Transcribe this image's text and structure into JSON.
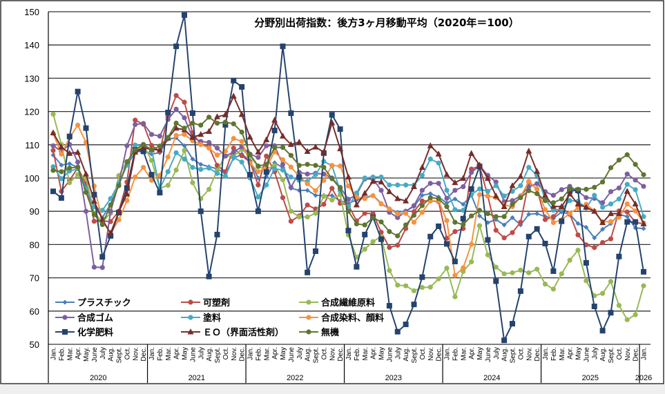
{
  "chart_data": {
    "type": "line",
    "title": "分野別出荷指数：後方3ヶ月移動平均（2020年＝100）",
    "xlabel": "",
    "ylabel": "",
    "ylim": [
      50,
      150
    ],
    "yticks": [
      150,
      140,
      130,
      120,
      110,
      100,
      90,
      80,
      70,
      60,
      50
    ],
    "grid": true,
    "legend_position": "bottom-left",
    "years": [
      "2020",
      "2021",
      "2022",
      "2023",
      "2024",
      "2025",
      "2026"
    ],
    "months": [
      "Jan.",
      "Feb.",
      "Mar.",
      "Apr.",
      "May.",
      "June",
      "July",
      "Aug.",
      "Sept.",
      "Oct.",
      "Nov.",
      "Dec.",
      "Jan.",
      "Feb.",
      "Mar.",
      "Apr.",
      "May",
      "June",
      "July",
      "Aug.",
      "Sept.",
      "Oct.",
      "Nov.",
      "Dec.",
      "Jan.",
      "Feb.",
      "Mar.",
      "Apr.",
      "May",
      "June",
      "July",
      "Aug.",
      "Sept.",
      "Oct.",
      "Nov.",
      "Dec.",
      "Jan.",
      "Feb.",
      "Mar.",
      "Apr.",
      "May",
      "June",
      "July",
      "Aug.",
      "Sept.",
      "Oct.",
      "Nov.",
      "Dec.",
      "Jan.",
      "Feb.",
      "Mar.",
      "Apr.",
      "May",
      "June",
      "July",
      "Aug.",
      "Sept.",
      "Oct.",
      "Nov.",
      "Dec.",
      "Jan.",
      "Feb.",
      "Mar.",
      "Apr.",
      "May",
      "June",
      "July",
      "Aug.",
      "Sept.",
      "Oct.",
      "Nov.",
      "Dec.",
      "Jan."
    ],
    "series": [
      {
        "name": "プラスチック",
        "color": "#4a7ebb",
        "marker": "diamond",
        "values": [
          106.9,
          103.9,
          104.3,
          103.2,
          96.9,
          91.4,
          88.1,
          92.1,
          98.3,
          103.8,
          107.8,
          108.1,
          107.2,
          107.6,
          111.7,
          112.1,
          109.7,
          105.7,
          104.1,
          103.4,
          102.8,
          101.4,
          105.9,
          107.2,
          105.2,
          100,
          100.3,
          104.6,
          103.1,
          96.9,
          96.3,
          96.3,
          94.8,
          94.8,
          94.7,
          93.1,
          92.4,
          93.4,
          94.1,
          94.8,
          92.4,
          90.7,
          89.7,
          90.1,
          91.4,
          94.8,
          95.3,
          94.3,
          92.5,
          93.7,
          92.1,
          94.8,
          88.6,
          86.6,
          87.5,
          85.9,
          88.1,
          85.9,
          89.1,
          89.3,
          88.4,
          87.9,
          89.8,
          89.1,
          86.3,
          85.2,
          82,
          84.6,
          86.3,
          89.1,
          88.4,
          85,
          84.8
        ]
      },
      {
        "name": "可塑剤",
        "color": "#be4b48",
        "marker": "circle",
        "values": [
          108.3,
          96,
          99.3,
          103.1,
          98.3,
          87,
          87.1,
          86.9,
          90,
          98.8,
          117.4,
          116.2,
          109.8,
          108.1,
          118.4,
          124.8,
          122.8,
          113.6,
          110.1,
          109.3,
          103.8,
          101.9,
          109,
          106.7,
          104.8,
          97.9,
          106.6,
          101.9,
          94.1,
          87,
          88.6,
          91.9,
          90.7,
          92.1,
          96.9,
          92.4,
          91.9,
          87.1,
          89.4,
          89.3,
          83.7,
          79.1,
          79.8,
          84.8,
          89.9,
          93.1,
          93.1,
          92.9,
          81.9,
          83.9,
          84.8,
          102.7,
          103.6,
          94.6,
          84.3,
          82,
          83.6,
          86.7,
          98.8,
          96.7,
          87.5,
          88.4,
          91.2,
          89.1,
          82.9,
          79.9,
          79.1,
          80.6,
          81.7,
          90.1,
          89.8,
          86.7,
          86.2
        ]
      },
      {
        "name": "合成繊維原料",
        "color": "#98b954",
        "marker": "circle",
        "values": [
          119.2,
          110.1,
          98.6,
          101,
          100,
          89.4,
          86.9,
          89.4,
          100.7,
          105,
          107.8,
          110,
          105.3,
          96.9,
          97.8,
          102.4,
          108.3,
          98.6,
          93.8,
          96.6,
          102.3,
          106.6,
          106.6,
          108.6,
          106.6,
          103.4,
          102.6,
          103.8,
          99.5,
          90,
          88.3,
          88.3,
          89.4,
          94.5,
          93.4,
          95,
          82.9,
          76.2,
          78.6,
          80.9,
          82.4,
          72.2,
          67.8,
          67.6,
          66.1,
          67.1,
          67.2,
          69.7,
          72.9,
          64.3,
          71.9,
          74.8,
          85.7,
          76.9,
          73.2,
          71.2,
          71.5,
          72.3,
          71.5,
          72.6,
          68.1,
          66.6,
          71.2,
          75.3,
          78.3,
          69.1,
          64.6,
          65.3,
          68.9,
          61.7,
          57.4,
          58.9,
          67.6
        ]
      },
      {
        "name": "合成ゴム",
        "color": "#7d5fa0",
        "marker": "circle",
        "values": [
          109.7,
          108.1,
          110.1,
          104.8,
          90,
          73.2,
          73.1,
          90,
          98.3,
          109.7,
          116.1,
          116.4,
          113.1,
          112.6,
          117.6,
          120.7,
          118.1,
          112.2,
          111,
          110.7,
          109,
          106.6,
          107.8,
          109.4,
          107.2,
          106.2,
          109.7,
          109.7,
          104.1,
          97.2,
          101.7,
          101.2,
          101.4,
          101.2,
          100,
          97.2,
          93.6,
          95,
          99.7,
          99.7,
          96.3,
          89.7,
          88.1,
          90,
          91.7,
          96.3,
          98.4,
          98.4,
          93.9,
          96.3,
          97.4,
          101.7,
          103.7,
          100.8,
          98.8,
          92.9,
          93.2,
          94.6,
          97.4,
          98.3,
          95.9,
          94.8,
          96.5,
          97.5,
          96,
          94.1,
          93.9,
          92.6,
          95.9,
          97,
          101.2,
          99.4,
          97.5
        ]
      },
      {
        "name": "塗料",
        "color": "#46aac5",
        "marker": "circle",
        "values": [
          103.4,
          99.8,
          102.1,
          102.8,
          96.9,
          91.4,
          90.3,
          93.8,
          98.3,
          103.9,
          109.9,
          109.7,
          108.6,
          96.9,
          101.9,
          107.6,
          105.7,
          103.2,
          102.6,
          103,
          101.4,
          100.5,
          106.2,
          104.8,
          100,
          94.3,
          97.9,
          102.8,
          102.4,
          100.3,
          99.3,
          99,
          101,
          105,
          103.7,
          96.2,
          91.4,
          95.5,
          100,
          100.3,
          100.3,
          97.9,
          97.9,
          97.9,
          97.9,
          100.8,
          105.7,
          104.5,
          96.3,
          90.5,
          90.3,
          95.1,
          96.7,
          96,
          97.7,
          94.6,
          96,
          97.7,
          103.2,
          100.8,
          93.6,
          90.3,
          90.7,
          93.2,
          93,
          91,
          94.8,
          91.2,
          92.2,
          93.7,
          98.1,
          96.5,
          88.4
        ]
      },
      {
        "name": "合成染料、顔料",
        "color": "#f69240",
        "marker": "circle",
        "values": [
          113.4,
          107.2,
          112.1,
          115.9,
          110.7,
          97.6,
          87.1,
          83.4,
          87.4,
          93.2,
          100.3,
          103.2,
          99.3,
          100.8,
          106.3,
          112.8,
          113.1,
          111.2,
          110.1,
          109,
          106.9,
          108.1,
          111.9,
          111,
          104.5,
          101.9,
          103.1,
          107.9,
          105.5,
          103.3,
          100.5,
          98.3,
          96.2,
          99.3,
          103.8,
          103.6,
          97.6,
          94.3,
          93.8,
          94.7,
          92.2,
          90.7,
          89.2,
          89.4,
          86.7,
          89.7,
          93.1,
          93.1,
          87.2,
          70.7,
          73,
          80.1,
          95,
          94.6,
          94.1,
          91.9,
          91.4,
          94.4,
          99,
          96.7,
          90.5,
          86.6,
          87.4,
          89.4,
          91,
          92.1,
          90.1,
          86.8,
          86.9,
          88.2,
          92.2,
          90.1,
          86.5
        ]
      },
      {
        "name": "化学肥料",
        "color": "#24436e",
        "marker": "square",
        "values": [
          96,
          94,
          112.5,
          126,
          115,
          95,
          76.3,
          82.6,
          89.6,
          97,
          108.5,
          108,
          101,
          95.6,
          119.7,
          139.6,
          149,
          119.5,
          90,
          70.4,
          83,
          116,
          129.3,
          127.4,
          101,
          90,
          101.8,
          114.3,
          139.6,
          119.5,
          100.3,
          71.6,
          78,
          107.5,
          119,
          114.7,
          84.2,
          73.3,
          83,
          88.2,
          81.6,
          61.6,
          53.8,
          56,
          62,
          70.2,
          82.4,
          85.5,
          80.2,
          74.9,
          87.8,
          96.7,
          103.5,
          81.4,
          69,
          51.2,
          56.2,
          66,
          82.4,
          84.7,
          80.3,
          72,
          87,
          96.1,
          96.3,
          74.5,
          61.4,
          54.1,
          59.5,
          76.4,
          86.8,
          86.8,
          71.8
        ]
      },
      {
        "name": "ＥＯ（界面活性剤）",
        "color": "#772c2a",
        "marker": "triangle",
        "values": [
          113.6,
          109.3,
          107.4,
          107.7,
          101.2,
          93,
          87.5,
          83.4,
          89.8,
          95.2,
          107.8,
          109.2,
          108.5,
          108.5,
          112,
          115,
          114.5,
          112.2,
          113.1,
          114,
          118.4,
          119,
          124.6,
          119.1,
          112.3,
          107.8,
          111.5,
          117.4,
          112.6,
          110.1,
          110.8,
          108,
          109.3,
          107.8,
          116.6,
          108.8,
          100.3,
          91.9,
          95.4,
          99,
          98.8,
          95.9,
          93.8,
          93.1,
          97.4,
          103.2,
          109.7,
          107.2,
          101,
          98.6,
          99.9,
          107.4,
          103.9,
          99.9,
          94.6,
          91.4,
          97.7,
          100.5,
          108.1,
          102,
          94.8,
          91.5,
          91.4,
          95.2,
          92.2,
          91.2,
          90,
          86.6,
          89.3,
          89.3,
          96,
          92.2,
          86.2
        ]
      },
      {
        "name": "無機",
        "color": "#5f7530",
        "marker": "circle",
        "values": [
          102.3,
          101.9,
          103,
          103.3,
          95.7,
          89,
          86,
          91.9,
          97.7,
          104.8,
          108.5,
          110.1,
          108.5,
          109.6,
          112.2,
          116.5,
          115,
          116.5,
          115.9,
          118.3,
          116.5,
          116.8,
          116.3,
          113.8,
          107.1,
          103.6,
          104.1,
          109.2,
          109.2,
          106.8,
          103.8,
          104.1,
          103.8,
          103.2,
          99.8,
          96.9,
          90,
          86.2,
          85.9,
          88.1,
          86.8,
          83.9,
          82.6,
          85.9,
          88.8,
          91.7,
          94.1,
          93.8,
          91.4,
          86.7,
          86,
          88.6,
          90.3,
          89.3,
          88.4,
          88.4,
          92.1,
          94.1,
          96.2,
          95.3,
          93.2,
          92.6,
          93.7,
          96.7,
          96.6,
          96.6,
          97.2,
          98.8,
          103.1,
          105.4,
          107,
          104.1,
          101
        ]
      }
    ]
  }
}
